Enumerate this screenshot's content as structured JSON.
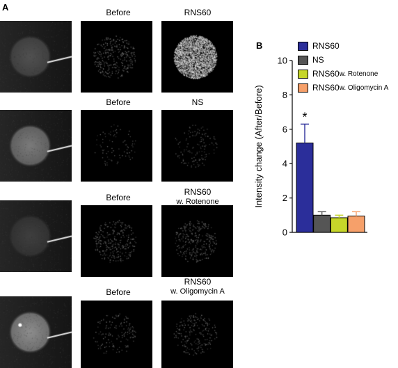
{
  "panel_a_label": "A",
  "panel_b_label": "B",
  "rows": [
    {
      "before_label": "Before",
      "after_label": "RNS60",
      "after_sub": "",
      "raw_image": {
        "circle_brightness": 0.22,
        "sparkle": false
      },
      "before_image": {
        "density": 0.1,
        "brightness": 0.5
      },
      "after_image": {
        "density": 0.85,
        "brightness": 0.95
      }
    },
    {
      "before_label": "Before",
      "after_label": "NS",
      "after_sub": "",
      "raw_image": {
        "circle_brightness": 0.45,
        "sparkle": false
      },
      "before_image": {
        "density": 0.03,
        "brightness": 0.4
      },
      "after_image": {
        "density": 0.05,
        "brightness": 0.4
      }
    },
    {
      "before_label": "Before",
      "after_label": "RNS60",
      "after_sub": "w. Rotenone",
      "raw_image": {
        "circle_brightness": 0.12,
        "sparkle": false
      },
      "before_image": {
        "density": 0.1,
        "brightness": 0.45
      },
      "after_image": {
        "density": 0.1,
        "brightness": 0.45
      }
    },
    {
      "before_label": "Before",
      "after_label": "RNS60",
      "after_sub": "w. Oligomycin A",
      "raw_image": {
        "circle_brightness": 0.55,
        "sparkle": true
      },
      "before_image": {
        "density": 0.05,
        "brightness": 0.45
      },
      "after_image": {
        "density": 0.07,
        "brightness": 0.45
      }
    }
  ],
  "legend": [
    {
      "main": "RNS60",
      "sub": "",
      "color": "#2b2e9a"
    },
    {
      "main": "NS",
      "sub": "",
      "color": "#555555"
    },
    {
      "main": "RNS60",
      "sub": " w. Rotenone",
      "color": "#c6d62a"
    },
    {
      "main": "RNS60",
      "sub": " w. Oligomycin A",
      "color": "#f6a06a"
    }
  ],
  "chart_data": {
    "type": "bar",
    "ylabel": "Intensity change (After/Before)",
    "ylim": [
      0,
      10
    ],
    "yticks": [
      0,
      2,
      4,
      6,
      8,
      10
    ],
    "categories": [
      "RNS60",
      "NS",
      "RNS60 w. Rotenone",
      "RNS60 w. Oligomycin A"
    ],
    "values": [
      5.2,
      1.0,
      0.85,
      0.95
    ],
    "errors": [
      1.1,
      0.2,
      0.15,
      0.25
    ],
    "colors": [
      "#2b2e9a",
      "#555555",
      "#c6d62a",
      "#f6a06a"
    ],
    "annotations": [
      {
        "category_index": 0,
        "text": "*"
      }
    ]
  }
}
